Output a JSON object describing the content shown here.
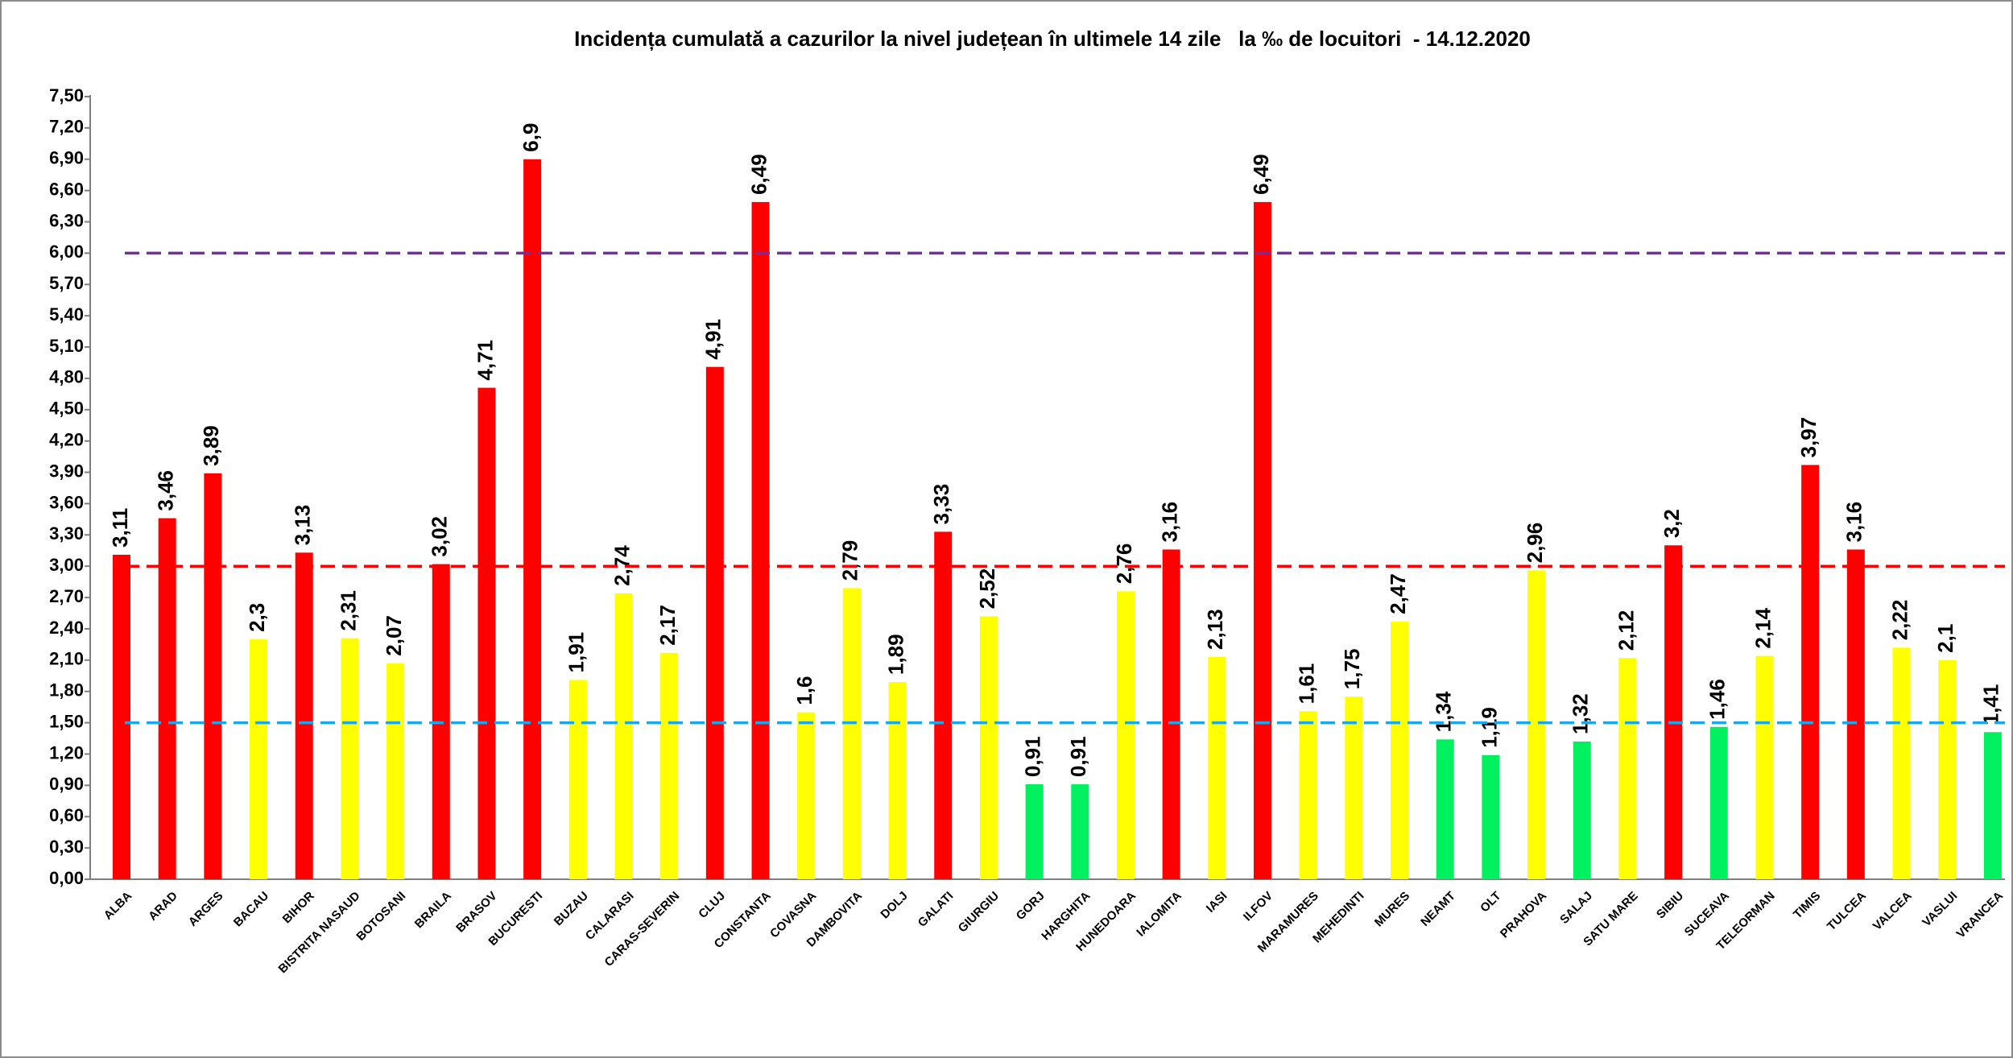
{
  "chart_data": {
    "type": "bar",
    "title": "Incidența cumulată a cazurilor la nivel județean în ultimele 14 zile   la ‰ de locuitori  - 14.12.2020",
    "categories": [
      "ALBA",
      "ARAD",
      "ARGES",
      "BACAU",
      "BIHOR",
      "BISTRITA NASAUD",
      "BOTOSANI",
      "BRAILA",
      "BRASOV",
      "BUCURESTI",
      "BUZAU",
      "CALARASI",
      "CARAS-SEVERIN",
      "CLUJ",
      "CONSTANTA",
      "COVASNA",
      "DAMBOVITA",
      "DOLJ",
      "GALATI",
      "GIURGIU",
      "GORJ",
      "HARGHITA",
      "HUNEDOARA",
      "IALOMITA",
      "IASI",
      "ILFOV",
      "MARAMURES",
      "MEHEDINTI",
      "MURES",
      "NEAMT",
      "OLT",
      "PRAHOVA",
      "SALAJ",
      "SATU MARE",
      "SIBIU",
      "SUCEAVA",
      "TELEORMAN",
      "TIMIS",
      "TULCEA",
      "VALCEA",
      "VASLUI",
      "VRANCEA"
    ],
    "values": [
      3.11,
      3.46,
      3.89,
      2.3,
      3.13,
      2.31,
      2.07,
      3.02,
      4.71,
      6.9,
      1.91,
      2.74,
      2.17,
      4.91,
      6.49,
      1.6,
      2.79,
      1.89,
      3.33,
      2.52,
      0.91,
      0.91,
      2.76,
      3.16,
      2.13,
      6.49,
      1.61,
      1.75,
      2.47,
      1.34,
      1.19,
      2.96,
      1.32,
      2.12,
      3.2,
      1.46,
      2.14,
      3.97,
      3.16,
      2.22,
      2.1,
      1.41
    ],
    "value_labels": [
      "3,11",
      "3,46",
      "3,89",
      "2,3",
      "3,13",
      "2,31",
      "2,07",
      "3,02",
      "4,71",
      "6,9",
      "1,91",
      "2,74",
      "2,17",
      "4,91",
      "6,49",
      "1,6",
      "2,79",
      "1,89",
      "3,33",
      "2,52",
      "0,91",
      "0,91",
      "2,76",
      "3,16",
      "2,13",
      "6,49",
      "1,61",
      "1,75",
      "2,47",
      "1,34",
      "1,19",
      "2,96",
      "1,32",
      "2,12",
      "3,2",
      "1,46",
      "2,14",
      "3,97",
      "3,16",
      "2,22",
      "2,1",
      "1,41"
    ],
    "bar_colors": [
      "#FF0000",
      "#FF0000",
      "#FF0000",
      "#FFFF00",
      "#FF0000",
      "#FFFF00",
      "#FFFF00",
      "#FF0000",
      "#FF0000",
      "#FF0000",
      "#FFFF00",
      "#FFFF00",
      "#FFFF00",
      "#FF0000",
      "#FF0000",
      "#FFFF00",
      "#FFFF00",
      "#FFFF00",
      "#FF0000",
      "#FFFF00",
      "#00F060",
      "#00F060",
      "#FFFF00",
      "#FF0000",
      "#FFFF00",
      "#FF0000",
      "#FFFF00",
      "#FFFF00",
      "#FFFF00",
      "#00F060",
      "#00F060",
      "#FFFF00",
      "#00F060",
      "#FFFF00",
      "#FF0000",
      "#00F060",
      "#FFFF00",
      "#FF0000",
      "#FF0000",
      "#FFFF00",
      "#FFFF00",
      "#00F060"
    ],
    "ylim": [
      0,
      7.5
    ],
    "yticks": [
      0,
      0.3,
      0.6,
      0.9,
      1.2,
      1.5,
      1.8,
      2.1,
      2.4,
      2.7,
      3.0,
      3.3,
      3.6,
      3.9,
      4.2,
      4.5,
      4.8,
      5.1,
      5.4,
      5.7,
      6.0,
      6.3,
      6.6,
      6.9,
      7.2,
      7.5
    ],
    "ytick_labels": [
      "0,00",
      "0,30",
      "0,60",
      "0,90",
      "1,20",
      "1,50",
      "1,80",
      "2,10",
      "2,40",
      "2,70",
      "3,00",
      "3,30",
      "3,60",
      "3,90",
      "4,20",
      "4,50",
      "4,80",
      "5,10",
      "5,40",
      "5,70",
      "6,00",
      "6,30",
      "6,60",
      "6,90",
      "7,20",
      "7,50"
    ],
    "reference_lines": [
      {
        "value": 6.0,
        "color": "#7030A0",
        "style": "dashed"
      },
      {
        "value": 3.0,
        "color": "#FF0000",
        "style": "dashed"
      },
      {
        "value": 1.5,
        "color": "#1AA7EC",
        "style": "dashed"
      }
    ],
    "grid": false,
    "legend": "none"
  }
}
